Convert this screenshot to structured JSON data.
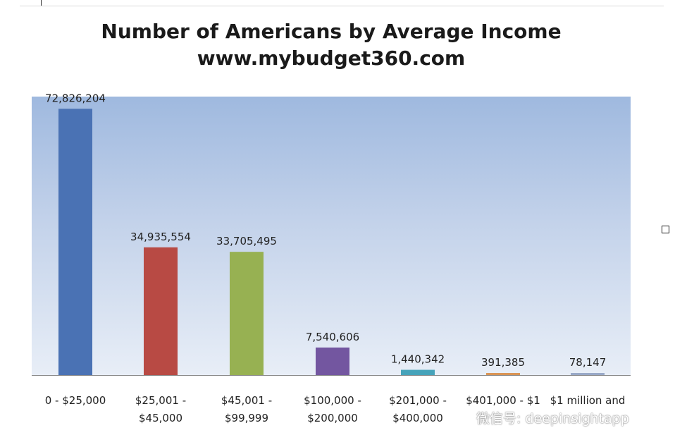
{
  "chart_data": {
    "type": "bar",
    "title": "Number of Americans by Average Income",
    "subtitle": "www.mybudget360.com",
    "categories": [
      [
        "0 - $25,000"
      ],
      [
        "$25,001 -",
        "$45,000"
      ],
      [
        "$45,001 -",
        "$99,999"
      ],
      [
        "$100,000 -",
        "$200,000"
      ],
      [
        "$201,000 -",
        "$400,000"
      ],
      [
        "$401,000 - $1"
      ],
      [
        "$1 million and"
      ]
    ],
    "values": [
      72826204,
      34935554,
      33705495,
      7540606,
      1440342,
      391385,
      78147
    ],
    "data_labels": [
      "72,826,204",
      "34,935,554",
      "33,705,495",
      "7,540,606",
      "1,440,342",
      "391,385",
      "78,147"
    ],
    "colors": [
      "#4a72b4",
      "#b84a44",
      "#97b152",
      "#7356a0",
      "#46a3ba",
      "#d99455",
      "#99a9c7"
    ],
    "ylim": [
      0,
      75000000
    ],
    "grid": false,
    "legend": "none"
  },
  "watermark": {
    "text": "微信号: deepinsightapp",
    "icon": "wechat-icon"
  }
}
